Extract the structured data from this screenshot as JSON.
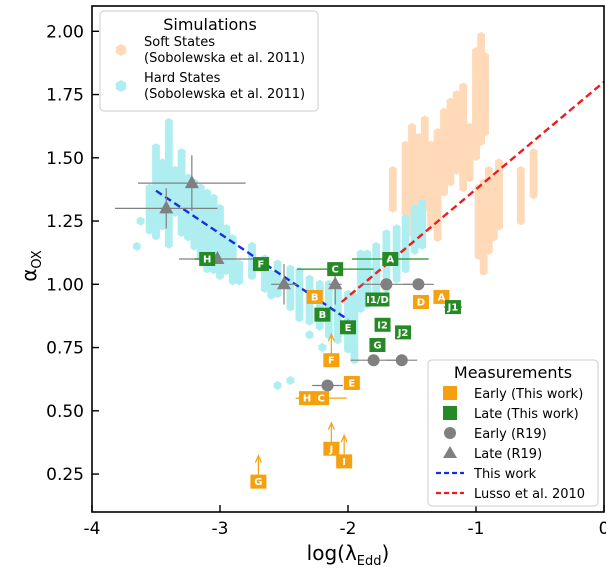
{
  "chart_data": {
    "type": "scatter",
    "xlabel": "log(λEdd)",
    "ylabel": "αOX",
    "xlim": [
      -4,
      0
    ],
    "ylim": [
      0.1,
      2.1
    ],
    "x_ticks": [
      "-4",
      "-3",
      "-2",
      "-1",
      "0"
    ],
    "y_ticks": [
      "0.25",
      "0.50",
      "0.75",
      "1.00",
      "1.25",
      "1.50",
      "1.75",
      "2.00"
    ],
    "grid": false,
    "legend_top": {
      "placement": "top-left",
      "title": "Simulations",
      "entries": [
        {
          "line1": "Soft States",
          "line2": "(Sobolewska et al. 2011)",
          "color": "#ffd9b8"
        },
        {
          "line1": "Hard States",
          "line2": "(Sobolewska et al. 2011)",
          "color": "#aeeef0"
        }
      ]
    },
    "legend_bottom": {
      "placement": "bottom-right",
      "title": "Measurements",
      "entries": [
        {
          "label": "Early (This work)",
          "marker": "square",
          "color": "#f5a10f"
        },
        {
          "label": "Late (This work)",
          "marker": "square",
          "color": "#258a25"
        },
        {
          "label": "Early (R19)",
          "marker": "circle",
          "color": "#808080"
        },
        {
          "label": "Late (R19)",
          "marker": "triangle",
          "color": "#808080"
        },
        {
          "label": "This work",
          "marker": "dashed-line",
          "color": "#1a2ee6"
        },
        {
          "label": "Lusso et al. 2010",
          "marker": "dashed-line",
          "color": "#ee1c1c"
        }
      ]
    },
    "fit_lines": [
      {
        "name": "This work",
        "color": "#1a2ee6",
        "x": [
          -3.5,
          -2.0
        ],
        "y": [
          1.37,
          0.86
        ]
      },
      {
        "name": "Lusso et al. 2010",
        "color": "#ee1c1c",
        "x": [
          -2.05,
          0.0
        ],
        "y": [
          0.93,
          1.8
        ]
      }
    ],
    "soft_states": {
      "color": "#ffd9b8",
      "columns": [
        {
          "x": -1.55,
          "ymin": 1.28,
          "ymax": 1.55
        },
        {
          "x": -1.5,
          "ymin": 1.2,
          "ymax": 1.62
        },
        {
          "x": -1.45,
          "ymin": 1.25,
          "ymax": 1.58
        },
        {
          "x": -1.4,
          "ymin": 1.3,
          "ymax": 1.65
        },
        {
          "x": -1.35,
          "ymin": 1.22,
          "ymax": 1.55
        },
        {
          "x": -1.3,
          "ymin": 1.18,
          "ymax": 1.6
        },
        {
          "x": -1.25,
          "ymin": 1.35,
          "ymax": 1.68
        },
        {
          "x": -1.2,
          "ymin": 1.4,
          "ymax": 1.72
        },
        {
          "x": -1.15,
          "ymin": 1.45,
          "ymax": 1.75
        },
        {
          "x": -1.1,
          "ymin": 1.38,
          "ymax": 1.78
        },
        {
          "x": -1.05,
          "ymin": 1.42,
          "ymax": 1.62
        },
        {
          "x": -1.0,
          "ymin": 1.5,
          "ymax": 1.92
        },
        {
          "x": -0.96,
          "ymin": 1.55,
          "ymax": 1.98
        },
        {
          "x": -0.93,
          "ymin": 1.6,
          "ymax": 1.9
        },
        {
          "x": -0.98,
          "ymin": 1.1,
          "ymax": 1.38
        },
        {
          "x": -0.94,
          "ymin": 1.05,
          "ymax": 1.4
        },
        {
          "x": -0.9,
          "ymin": 1.12,
          "ymax": 1.45
        },
        {
          "x": -0.86,
          "ymin": 1.18,
          "ymax": 1.42
        },
        {
          "x": -0.82,
          "ymin": 1.22,
          "ymax": 1.48
        },
        {
          "x": -0.65,
          "ymin": 1.25,
          "ymax": 1.45
        },
        {
          "x": -0.55,
          "ymin": 1.35,
          "ymax": 1.52
        },
        {
          "x": -1.65,
          "ymin": 1.3,
          "ymax": 1.45
        }
      ]
    },
    "hard_states": {
      "color": "#aeeef0",
      "columns": [
        {
          "x": -3.55,
          "ymin": 1.2,
          "ymax": 1.38
        },
        {
          "x": -3.5,
          "ymin": 1.18,
          "ymax": 1.54
        },
        {
          "x": -3.45,
          "ymin": 1.22,
          "ymax": 1.48
        },
        {
          "x": -3.4,
          "ymin": 1.15,
          "ymax": 1.64
        },
        {
          "x": -3.35,
          "ymin": 1.28,
          "ymax": 1.45
        },
        {
          "x": -3.3,
          "ymin": 1.2,
          "ymax": 1.52
        },
        {
          "x": -3.25,
          "ymin": 1.18,
          "ymax": 1.42
        },
        {
          "x": -3.2,
          "ymin": 1.14,
          "ymax": 1.4
        },
        {
          "x": -3.15,
          "ymin": 1.1,
          "ymax": 1.38
        },
        {
          "x": -3.1,
          "ymin": 1.06,
          "ymax": 1.36
        },
        {
          "x": -3.05,
          "ymin": 1.05,
          "ymax": 1.34
        },
        {
          "x": -3.0,
          "ymin": 1.02,
          "ymax": 1.3
        },
        {
          "x": -2.95,
          "ymin": 1.05,
          "ymax": 1.22
        },
        {
          "x": -2.9,
          "ymin": 1.0,
          "ymax": 1.18
        },
        {
          "x": -2.75,
          "ymin": 1.02,
          "ymax": 1.15
        },
        {
          "x": -2.65,
          "ymin": 0.98,
          "ymax": 1.1
        },
        {
          "x": -2.55,
          "ymin": 0.95,
          "ymax": 1.08
        },
        {
          "x": -2.45,
          "ymin": 0.9,
          "ymax": 1.06
        },
        {
          "x": -2.38,
          "ymin": 0.86,
          "ymax": 1.05
        },
        {
          "x": -2.3,
          "ymin": 0.84,
          "ymax": 1.02
        },
        {
          "x": -2.22,
          "ymin": 0.82,
          "ymax": 1.0
        },
        {
          "x": -2.15,
          "ymin": 0.8,
          "ymax": 1.0
        },
        {
          "x": -2.08,
          "ymin": 0.77,
          "ymax": 0.98
        },
        {
          "x": -2.0,
          "ymin": 0.74,
          "ymax": 0.96
        },
        {
          "x": -1.95,
          "ymin": 0.7,
          "ymax": 0.95
        },
        {
          "x": -1.9,
          "ymin": 0.9,
          "ymax": 1.12
        },
        {
          "x": -1.85,
          "ymin": 0.92,
          "ymax": 1.12
        },
        {
          "x": -1.78,
          "ymin": 0.95,
          "ymax": 1.15
        },
        {
          "x": -1.7,
          "ymin": 0.98,
          "ymax": 1.2
        },
        {
          "x": -1.62,
          "ymin": 1.02,
          "ymax": 1.22
        },
        {
          "x": -1.55,
          "ymin": 1.05,
          "ymax": 1.26
        },
        {
          "x": -1.48,
          "ymin": 1.12,
          "ymax": 1.3
        },
        {
          "x": -1.42,
          "ymin": 1.15,
          "ymax": 1.32
        },
        {
          "x": -2.85,
          "ymin": 1.0,
          "ymax": 1.08
        },
        {
          "x": -2.6,
          "ymin": 0.95,
          "ymax": 1.04
        }
      ],
      "scatter": [
        [
          -3.65,
          1.15
        ],
        [
          -3.62,
          1.25
        ],
        [
          -2.55,
          0.6
        ],
        [
          -2.45,
          0.62
        ],
        [
          -2.3,
          0.8
        ],
        [
          -2.2,
          0.75
        ],
        [
          -1.98,
          0.62
        ]
      ]
    },
    "early_this_work": {
      "color": "#f5a10f",
      "points": [
        {
          "label": "A",
          "x": -1.27,
          "y": 0.95,
          "xerr": 0.04,
          "yerr": 0.0
        },
        {
          "label": "D",
          "x": -1.43,
          "y": 0.93,
          "xerr": 0.05,
          "yerr": 0.0
        },
        {
          "label": "E",
          "x": -1.97,
          "y": 0.61,
          "xerr": 0.04,
          "yerr": 0.0
        },
        {
          "label": "F",
          "x": -2.13,
          "y": 0.7,
          "xerr": 0.04,
          "yerr": 0.0,
          "lower_limit": true
        },
        {
          "label": "H",
          "x": -2.32,
          "y": 0.55,
          "xerr": 0.08,
          "yerr": 0.0
        },
        {
          "label": "C",
          "x": -2.21,
          "y": 0.55,
          "xerr": 0.2,
          "yerr": 0.0
        },
        {
          "label": "B",
          "x": -2.26,
          "y": 0.95,
          "xerr": 0.04,
          "yerr": 0.0
        },
        {
          "label": "J",
          "x": -2.13,
          "y": 0.35,
          "xerr": 0.03,
          "yerr": 0.0,
          "lower_limit": true
        },
        {
          "label": "I",
          "x": -2.03,
          "y": 0.3,
          "xerr": 0.03,
          "yerr": 0.0,
          "lower_limit": true
        },
        {
          "label": "G",
          "x": -2.7,
          "y": 0.22,
          "xerr": 0.04,
          "yerr": 0.0,
          "lower_limit": true
        }
      ]
    },
    "late_this_work": {
      "color": "#258a25",
      "points": [
        {
          "label": "H",
          "x": -3.1,
          "y": 1.1,
          "xerr": 0.1,
          "yerr": 0.0
        },
        {
          "label": "F",
          "x": -2.68,
          "y": 1.08,
          "xerr": 0.06,
          "yerr": 0.0
        },
        {
          "label": "C",
          "x": -2.1,
          "y": 1.06,
          "xerr": 0.3,
          "yerr": 0.0
        },
        {
          "label": "A",
          "x": -1.67,
          "y": 1.1,
          "xerr": 0.3,
          "yerr": 0.0
        },
        {
          "label": "B",
          "x": -2.2,
          "y": 0.88,
          "xerr": 0.04,
          "yerr": 0.0
        },
        {
          "label": "E",
          "x": -2.0,
          "y": 0.83,
          "xerr": 0.04,
          "yerr": 0.0
        },
        {
          "label": "I1/D",
          "x": -1.77,
          "y": 0.94,
          "xerr": 0.05,
          "yerr": 0.0
        },
        {
          "label": "I2",
          "x": -1.73,
          "y": 0.84,
          "xerr": 0.05,
          "yerr": 0.0
        },
        {
          "label": "J2",
          "x": -1.57,
          "y": 0.81,
          "xerr": 0.06,
          "yerr": 0.0
        },
        {
          "label": "G",
          "x": -1.77,
          "y": 0.76,
          "xerr": 0.05,
          "yerr": 0.0
        },
        {
          "label": "J1",
          "x": -1.18,
          "y": 0.91,
          "xerr": 0.07,
          "yerr": 0.0
        }
      ]
    },
    "early_r19": {
      "color": "#808080",
      "points": [
        {
          "x": -1.7,
          "y": 1.0,
          "xerr": 0.2,
          "yerr": 0.0
        },
        {
          "x": -1.45,
          "y": 1.0,
          "xerr": 0.12,
          "yerr": 0.0
        },
        {
          "x": -1.8,
          "y": 0.7,
          "xerr": 0.18,
          "yerr": 0.0
        },
        {
          "x": -1.58,
          "y": 0.7,
          "xerr": 0.12,
          "yerr": 0.0
        },
        {
          "x": -2.16,
          "y": 0.6,
          "xerr": 0.12,
          "yerr": 0.0
        }
      ]
    },
    "late_r19": {
      "color": "#808080",
      "points": [
        {
          "x": -3.42,
          "y": 1.3,
          "xerr": 0.4,
          "yerr": 0.08
        },
        {
          "x": -3.22,
          "y": 1.4,
          "xerr": 0.42,
          "yerr": 0.11
        },
        {
          "x": -3.02,
          "y": 1.1,
          "xerr": 0.3,
          "yerr": 0.0
        },
        {
          "x": -2.5,
          "y": 1.0,
          "xerr": 0.1,
          "yerr": 0.08
        },
        {
          "x": -2.1,
          "y": 1.0,
          "xerr": 0.05,
          "yerr": 0.08
        }
      ]
    }
  }
}
